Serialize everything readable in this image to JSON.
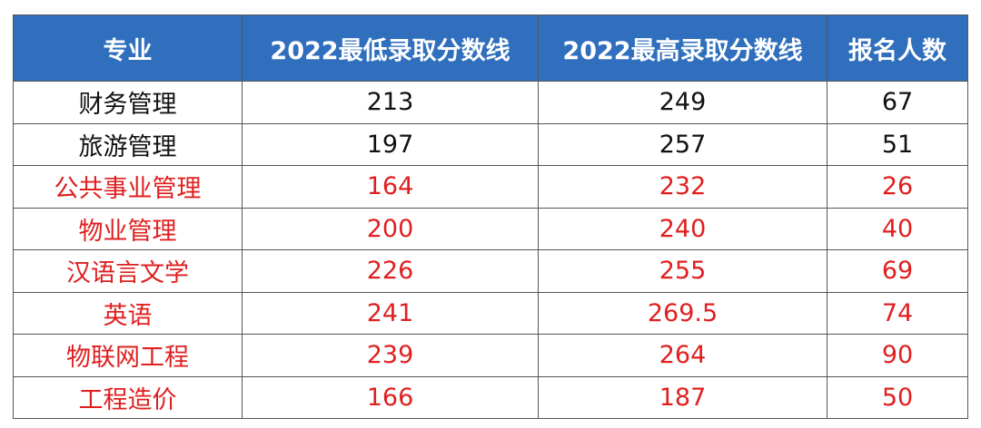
{
  "table": {
    "headers": [
      "专业",
      "2022最低录取分数线",
      "2022最高录取分数线",
      "报名人数"
    ],
    "rows": [
      {
        "major": "财务管理",
        "min": "213",
        "max": "249",
        "count": "67",
        "highlight": false
      },
      {
        "major": "旅游管理",
        "min": "197",
        "max": "257",
        "count": "51",
        "highlight": false
      },
      {
        "major": "公共事业管理",
        "min": "164",
        "max": "232",
        "count": "26",
        "highlight": true
      },
      {
        "major": "物业管理",
        "min": "200",
        "max": "240",
        "count": "40",
        "highlight": true
      },
      {
        "major": "汉语言文学",
        "min": "226",
        "max": "255",
        "count": "69",
        "highlight": true
      },
      {
        "major": "英语",
        "min": "241",
        "max": "269.5",
        "count": "74",
        "highlight": true
      },
      {
        "major": "物联网工程",
        "min": "239",
        "max": "264",
        "count": "90",
        "highlight": true
      },
      {
        "major": "工程造价",
        "min": "166",
        "max": "187",
        "count": "50",
        "highlight": true
      }
    ]
  },
  "colors": {
    "header_bg": "#2f6fbd",
    "header_text": "#ffffff",
    "highlight_text": "#e01f1f",
    "normal_text": "#111111"
  }
}
